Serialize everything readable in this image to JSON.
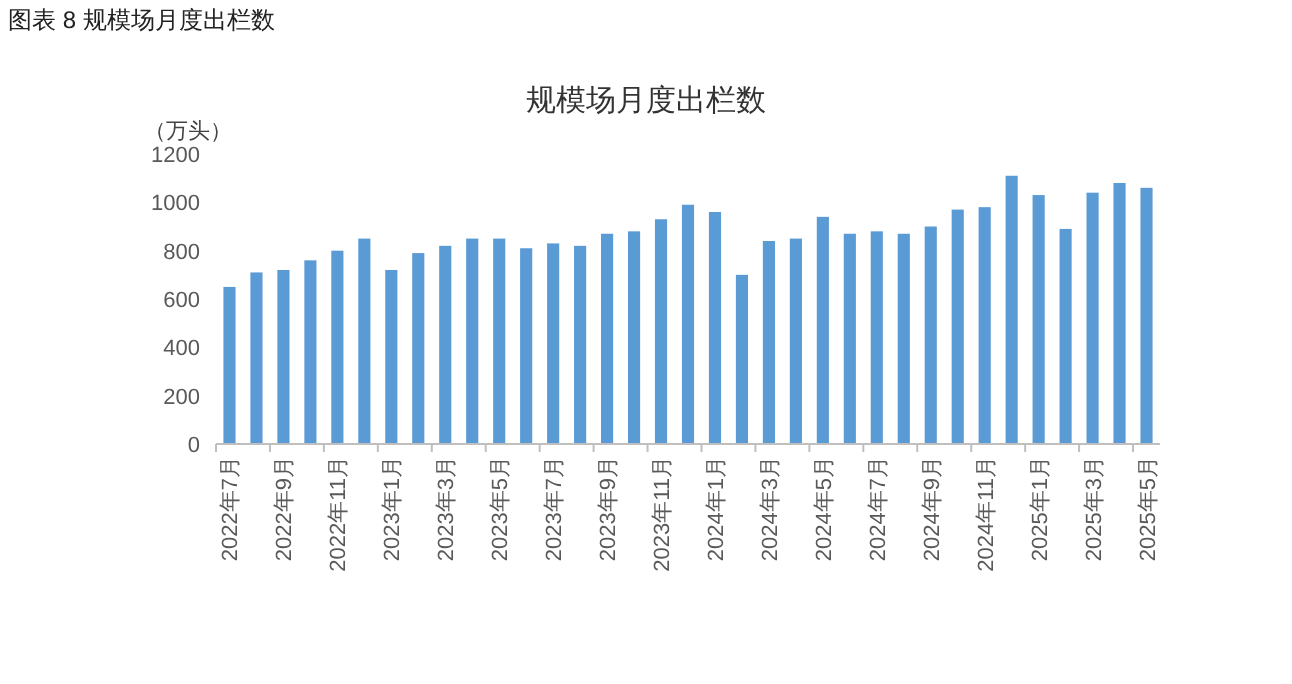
{
  "chart_data": {
    "type": "bar",
    "title": "规模场月度出栏数",
    "ylabel": "（万头）",
    "annotations": [
      "图表 8  规模场月度出栏数"
    ],
    "categories": [
      "2022年7月",
      null,
      "2022年9月",
      null,
      "2022年11月",
      null,
      "2023年1月",
      null,
      "2023年3月",
      null,
      "2023年5月",
      null,
      "2023年7月",
      null,
      "2023年9月",
      null,
      "2023年11月",
      null,
      "2024年1月",
      null,
      "2024年3月",
      null,
      "2024年5月",
      null,
      "2024年7月",
      null,
      "2024年9月",
      null,
      "2024年11月",
      null,
      "2025年1月",
      null,
      "2025年3月",
      null,
      "2025年5月"
    ],
    "values": [
      650,
      710,
      720,
      760,
      800,
      850,
      720,
      790,
      820,
      850,
      850,
      810,
      830,
      820,
      870,
      880,
      930,
      990,
      960,
      700,
      840,
      850,
      940,
      870,
      880,
      870,
      900,
      970,
      980,
      1110,
      1030,
      890,
      1040,
      1080,
      1060
    ],
    "color": "#5b9bd5",
    "ylim": [
      0,
      1200
    ],
    "yticks": [
      0,
      200,
      400,
      600,
      800,
      1000,
      1200
    ],
    "grid": false
  }
}
